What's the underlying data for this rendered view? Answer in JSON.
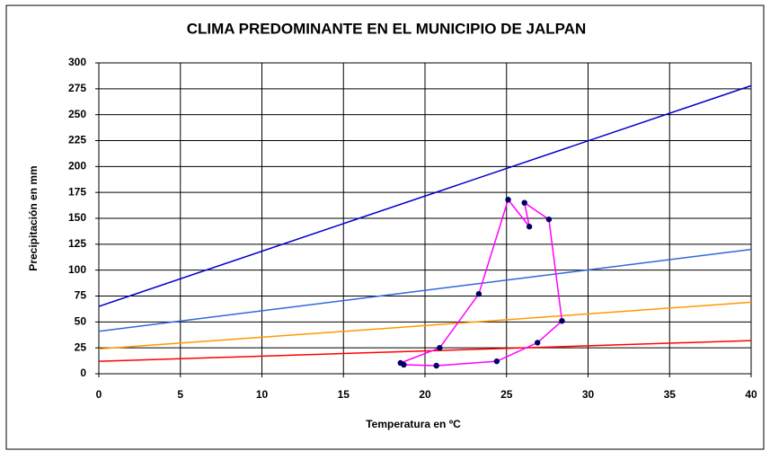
{
  "chart_data": {
    "type": "line",
    "title": "CLIMA PREDOMINANTE EN EL MUNICIPIO DE JALPAN",
    "x_label": "Temperatura en ºC",
    "y_label": "Precipitación en mm",
    "xlim": [
      0,
      40
    ],
    "xticks": [
      0,
      5,
      10,
      15,
      20,
      25,
      30,
      35,
      40
    ],
    "ylim": [
      0,
      300
    ],
    "yticks": [
      0,
      25,
      50,
      75,
      100,
      125,
      150,
      175,
      200,
      225,
      250,
      275,
      300
    ],
    "grid": true,
    "series": [
      {
        "color": "#0000cc",
        "x": [
          0,
          40
        ],
        "values": [
          65,
          278
        ]
      },
      {
        "color": "#3366dd",
        "x": [
          0,
          40
        ],
        "values": [
          41,
          120
        ]
      },
      {
        "color": "#ff9900",
        "x": [
          0,
          40
        ],
        "values": [
          24,
          69
        ]
      },
      {
        "color": "#ff0000",
        "x": [
          0,
          40
        ],
        "values": [
          12,
          32
        ]
      },
      {
        "color": "#ff00ff",
        "marker_color": "#000066",
        "x": [
          18.7,
          20.7,
          24.4,
          26.9,
          28.4,
          27.6,
          26.1,
          26.4,
          25.1,
          23.3,
          20.9,
          18.5
        ],
        "values": [
          8.7,
          7.8,
          12,
          30,
          51,
          149,
          165,
          142,
          168,
          77,
          25,
          10.4
        ]
      }
    ]
  }
}
